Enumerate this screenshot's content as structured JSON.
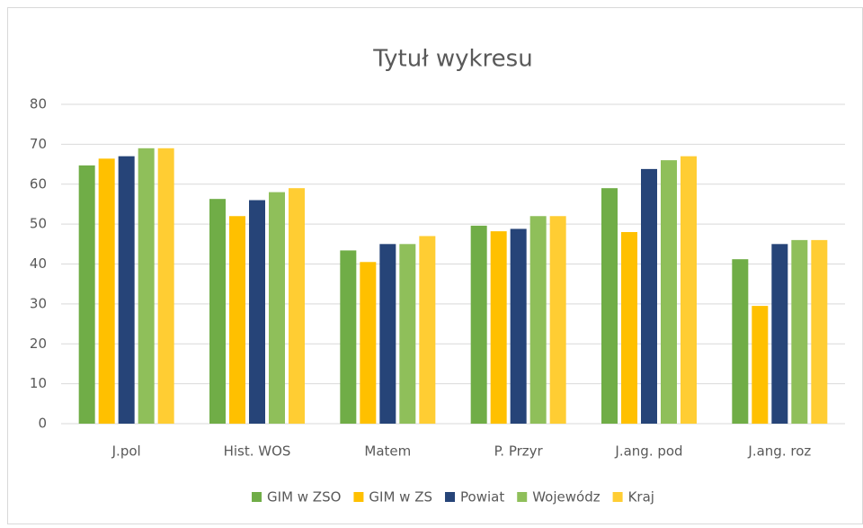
{
  "chart_data": {
    "type": "bar",
    "title": "Tytuł wykresu",
    "categories": [
      "J.pol",
      "Hist. WOS",
      "Matem",
      "P. Przyr",
      "J.ang. pod",
      "J.ang. roz"
    ],
    "series": [
      {
        "name": "GIM w ZSO",
        "color": "#70ad47",
        "values": [
          64.7,
          56.3,
          43.4,
          49.6,
          59,
          41.2
        ]
      },
      {
        "name": "GIM w ZS",
        "color": "#ffc000",
        "values": [
          66.4,
          52,
          40.5,
          48.2,
          48,
          29.5
        ]
      },
      {
        "name": "Powiat",
        "color": "#264478",
        "values": [
          67,
          56,
          45,
          48.8,
          63.8,
          45
        ]
      },
      {
        "name": "Wojewódz",
        "color": "#8fbf5a",
        "values": [
          69,
          58,
          45,
          52,
          66,
          46
        ]
      },
      {
        "name": "Kraj",
        "color": "#ffcd33",
        "values": [
          69,
          59,
          47,
          52,
          67,
          46
        ]
      }
    ],
    "ylim": [
      0,
      80
    ],
    "yticks": [
      0,
      10,
      20,
      30,
      40,
      50,
      60,
      70,
      80
    ],
    "grid": true,
    "legend": "bottom"
  }
}
